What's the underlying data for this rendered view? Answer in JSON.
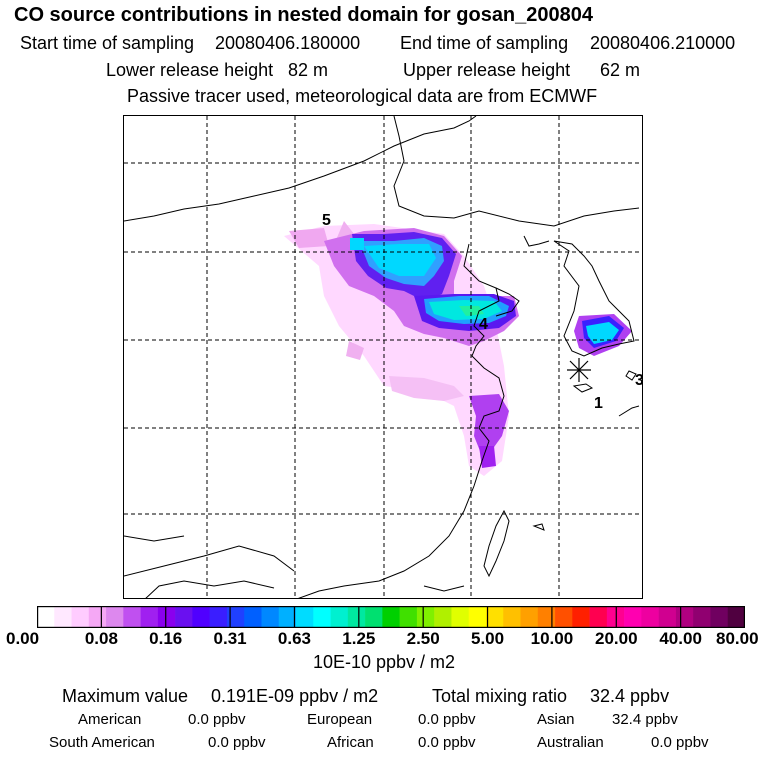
{
  "header": {
    "title": "CO  source contributions in nested domain for gosan_200804",
    "start_label": "Start time of sampling",
    "start_value": "20080406.180000",
    "end_label": "End time of sampling",
    "end_value": "20080406.210000",
    "lower_label": "Lower release height",
    "lower_value": "82 m",
    "upper_label": "Upper release height",
    "upper_value": "62 m",
    "note": "Passive tracer used, meteorological data are from ECMWF"
  },
  "map": {
    "point_labels": [
      "1",
      "3",
      "4",
      "5"
    ],
    "release_site_icon": "asterisk-icon"
  },
  "colorbar": {
    "ticks": [
      "0.00",
      "0.08",
      "0.16",
      "0.31",
      "0.63",
      "1.25",
      "2.50",
      "5.00",
      "10.00",
      "20.00",
      "40.00",
      "80.00"
    ],
    "units": "10E-10 ppbv / m2",
    "colors": [
      "#ffffff",
      "#ffe8ff",
      "#ffccff",
      "#f5a8f5",
      "#dd88ee",
      "#c050f0",
      "#a020f0",
      "#8a00ee",
      "#6a10f0",
      "#5000ff",
      "#3a1eff",
      "#2040ff",
      "#0060ff",
      "#0088ff",
      "#00b0ff",
      "#00dcff",
      "#00ffff",
      "#00f0d0",
      "#00e8a0",
      "#00e070",
      "#00d000",
      "#40e000",
      "#80f000",
      "#b0f000",
      "#e0ff00",
      "#ffff00",
      "#ffe000",
      "#ffc000",
      "#ffa000",
      "#ff8000",
      "#ff5000",
      "#ff2000",
      "#ff0050",
      "#ff0090",
      "#ff00b0",
      "#ee00a0",
      "#d00090",
      "#b00080",
      "#900070",
      "#700060",
      "#500040"
    ]
  },
  "stats": {
    "max_label": "Maximum value",
    "max_value": "0.191E-09 ppbv / m2",
    "total_label": "Total mixing ratio",
    "total_value": "32.4 ppbv"
  },
  "sources": [
    {
      "name": "American",
      "value": "0.0 ppbv"
    },
    {
      "name": "European",
      "value": "0.0 ppbv"
    },
    {
      "name": "Asian",
      "value": "32.4 ppbv"
    },
    {
      "name": "South American",
      "value": "0.0 ppbv"
    },
    {
      "name": "African",
      "value": "0.0 ppbv"
    },
    {
      "name": "Australian",
      "value": "0.0 ppbv"
    }
  ]
}
